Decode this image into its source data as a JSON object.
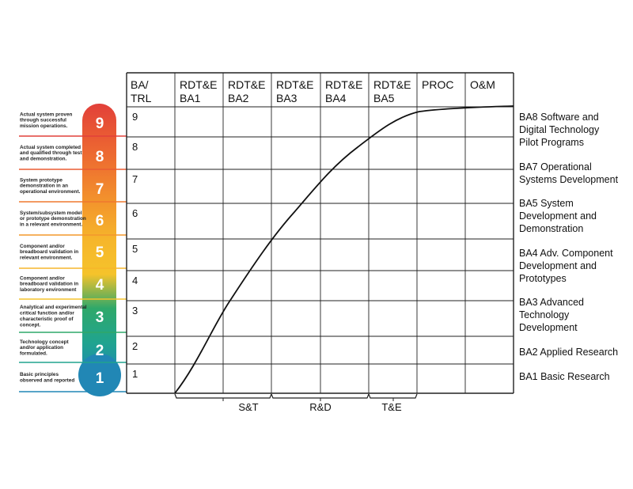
{
  "table": {
    "corner": [
      "BA/",
      "TRL"
    ],
    "columns": [
      [
        "RDT&E",
        "BA1"
      ],
      [
        "RDT&E",
        "BA2"
      ],
      [
        "RDT&E",
        "BA3"
      ],
      [
        "RDT&E",
        "BA4"
      ],
      [
        "RDT&E",
        "BA5"
      ],
      [
        "PROC",
        ""
      ],
      [
        "O&M",
        ""
      ]
    ],
    "rows": [
      "9",
      "8",
      "7",
      "6",
      "5",
      "4",
      "3",
      "2",
      "1"
    ]
  },
  "trl_scale": [
    {
      "level": "9",
      "desc": [
        "Actual system proven",
        "through successful",
        "mission operations."
      ],
      "color": "#e2403a"
    },
    {
      "level": "8",
      "desc": [
        "Actual system completed",
        "and qualified through test",
        "and demonstration."
      ],
      "color": "#ea5c33"
    },
    {
      "level": "7",
      "desc": [
        "System prototype",
        "demonstration in an",
        "operational environment."
      ],
      "color": "#ef782f"
    },
    {
      "level": "6",
      "desc": [
        "System/subsystem model",
        "or prototype demonstration",
        "in a relevant environment."
      ],
      "color": "#f3982c"
    },
    {
      "level": "5",
      "desc": [
        "Component and/or",
        "breadboard validation in",
        "relevant environment."
      ],
      "color": "#f6b62b"
    },
    {
      "level": "4",
      "desc": [
        "Component and/or",
        "breadboard validation in",
        "laboratory environment"
      ],
      "color": "#f5c32b"
    },
    {
      "level": "3",
      "desc": [
        "Analytical and experimental",
        "critical function and/or",
        "characteristic proof of",
        "concept."
      ],
      "color": "#2fa86a"
    },
    {
      "level": "2",
      "desc": [
        "Technology concept",
        "and/or application",
        "formulated."
      ],
      "color": "#20a48f"
    },
    {
      "level": "1",
      "desc": [
        "Basic principles",
        "observed and reported"
      ],
      "color": "#2187b5"
    }
  ],
  "ba_labels": [
    [
      "BA8 Software and",
      "Digital Technology",
      "Pilot Programs"
    ],
    [
      "BA7 Operational",
      "Systems Development"
    ],
    [
      "BA5 System",
      "Development and",
      "Demonstration"
    ],
    [
      "BA4 Adv. Component",
      "Development and",
      "Prototypes"
    ],
    [
      "BA3 Advanced",
      "Technology",
      "Development"
    ],
    [
      "BA2 Applied Research"
    ],
    [
      "BA1 Basic Research"
    ]
  ],
  "brackets": [
    "S&T",
    "R&D",
    "T&E"
  ],
  "curve_color": "#111111"
}
